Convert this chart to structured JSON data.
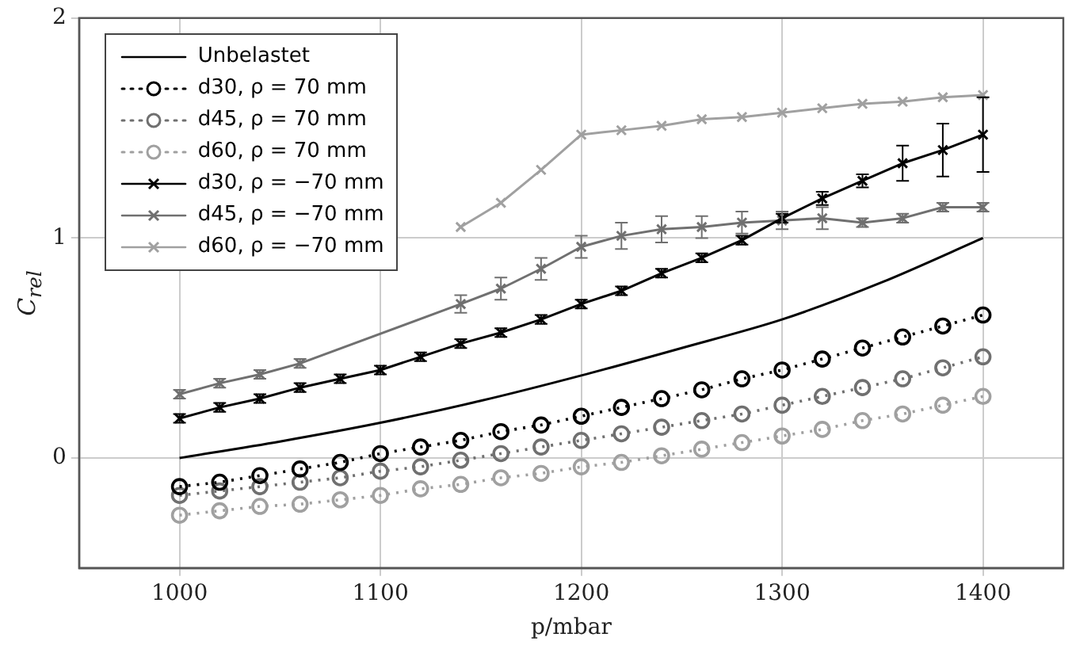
{
  "chart_data": {
    "type": "line",
    "xlabel": "p/mbar",
    "ylabel": "C$_{rel}$",
    "x": [
      1000,
      1020,
      1040,
      1060,
      1080,
      1100,
      1120,
      1140,
      1160,
      1180,
      1200,
      1220,
      1240,
      1260,
      1280,
      1300,
      1320,
      1340,
      1360,
      1380,
      1400
    ],
    "xlim": [
      950,
      1440
    ],
    "xticks": [
      1000,
      1100,
      1200,
      1300,
      1400
    ],
    "ylim": [
      -0.5,
      2
    ],
    "yticks": [
      0,
      1,
      2
    ],
    "grid": true,
    "legend": "top left",
    "series": [
      {
        "name": "Unbelastet",
        "color": "#000000",
        "marker": "none",
        "line_style": "solid",
        "x": [
          1000,
          1050,
          1100,
          1150,
          1200,
          1250,
          1300,
          1350,
          1400
        ],
        "values": [
          0,
          0.075,
          0.16,
          0.26,
          0.375,
          0.5,
          0.63,
          0.8,
          1.0
        ]
      },
      {
        "name": "d30, ρ = 70 mm",
        "color": "#000000",
        "marker": "circle",
        "line_style": "dotted",
        "values": [
          -0.13,
          -0.11,
          -0.08,
          -0.05,
          -0.02,
          0.02,
          0.05,
          0.08,
          0.12,
          0.15,
          0.19,
          0.23,
          0.27,
          0.31,
          0.36,
          0.4,
          0.45,
          0.5,
          0.55,
          0.6,
          0.65
        ]
      },
      {
        "name": "d45, ρ = 70 mm",
        "color": "#707070",
        "marker": "circle",
        "line_style": "dotted",
        "values": [
          -0.17,
          -0.15,
          -0.13,
          -0.11,
          -0.09,
          -0.06,
          -0.04,
          -0.01,
          0.02,
          0.05,
          0.08,
          0.11,
          0.14,
          0.17,
          0.2,
          0.24,
          0.28,
          0.32,
          0.36,
          0.41,
          0.46
        ]
      },
      {
        "name": "d60, ρ = 70 mm",
        "color": "#a0a0a0",
        "marker": "circle",
        "line_style": "dotted",
        "values": [
          -0.26,
          -0.24,
          -0.22,
          -0.21,
          -0.19,
          -0.17,
          -0.14,
          -0.12,
          -0.09,
          -0.07,
          -0.04,
          -0.02,
          0.01,
          0.04,
          0.07,
          0.1,
          0.13,
          0.17,
          0.2,
          0.24,
          0.28
        ]
      },
      {
        "name": "d30, ρ = −70 mm",
        "color": "#000000",
        "marker": "cross",
        "line_style": "solid",
        "values": [
          0.18,
          0.23,
          0.27,
          0.32,
          0.36,
          0.4,
          0.46,
          0.52,
          0.57,
          0.63,
          0.7,
          0.76,
          0.84,
          0.91,
          0.99,
          1.09,
          1.18,
          1.26,
          1.34,
          1.4,
          1.47
        ],
        "errors": [
          0.02,
          0.02,
          0.02,
          0.02,
          0.02,
          0.02,
          0.02,
          0.02,
          0.02,
          0.02,
          0.02,
          0.02,
          0.02,
          0.02,
          0.02,
          0.02,
          0.03,
          0.03,
          0.08,
          0.12,
          0.17
        ]
      },
      {
        "name": "d45, ρ = −70 mm",
        "color": "#707070",
        "marker": "cross",
        "line_style": "solid",
        "values": [
          0.29,
          0.34,
          0.38,
          0.43,
          null,
          null,
          null,
          0.7,
          0.77,
          0.86,
          0.96,
          1.01,
          1.04,
          1.05,
          1.07,
          1.08,
          1.09,
          1.07,
          1.09,
          1.14,
          1.14
        ],
        "errors": [
          0.02,
          0.02,
          0.02,
          0.02,
          null,
          null,
          null,
          0.04,
          0.05,
          0.05,
          0.05,
          0.06,
          0.06,
          0.05,
          0.05,
          0.04,
          0.05,
          0.02,
          0.02,
          0.02,
          0.02
        ]
      },
      {
        "name": "d60, ρ = −70 mm",
        "color": "#a0a0a0",
        "marker": "cross",
        "line_style": "solid",
        "values": [
          null,
          null,
          null,
          null,
          null,
          null,
          null,
          1.05,
          1.16,
          1.31,
          1.47,
          1.49,
          1.51,
          1.54,
          1.55,
          1.57,
          1.59,
          1.61,
          1.62,
          1.64,
          1.65
        ]
      }
    ]
  }
}
